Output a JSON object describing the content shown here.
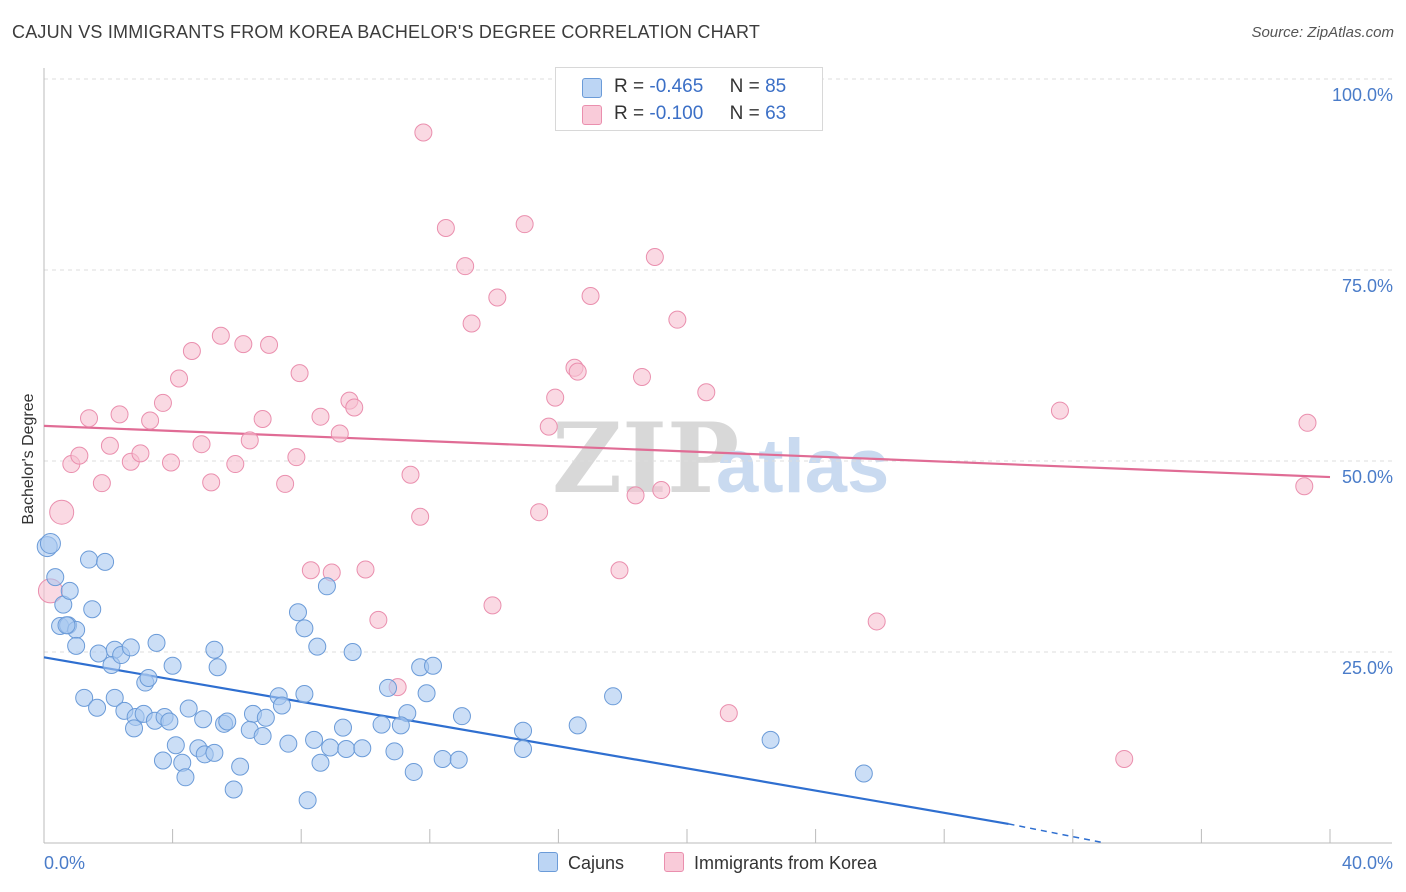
{
  "title": "CAJUN VS IMMIGRANTS FROM KOREA BACHELOR'S DEGREE CORRELATION CHART",
  "source": "Source: ZipAtlas.com",
  "colors": {
    "blue_fill": "#a9c8f0",
    "blue_stroke": "#6b9bd8",
    "blue_line": "#2f6fd0",
    "pink_fill": "#f6bfd0",
    "pink_stroke": "#ea8fae",
    "pink_line": "#e06c95",
    "tick_text": "#4a7cc9",
    "grid": "#dddddd"
  },
  "legend": {
    "rows": [
      {
        "r_label": "R =",
        "r_value": "-0.465",
        "n_label": "N =",
        "n_value": "85"
      },
      {
        "r_label": "R =",
        "r_value": "-0.100",
        "n_label": "N =",
        "n_value": "63"
      }
    ]
  },
  "bottom_legend": [
    "Cajuns",
    "Immigrants from Korea"
  ],
  "chart_data": {
    "type": "scatter",
    "title": "CAJUN VS IMMIGRANTS FROM KOREA BACHELOR'S DEGREE CORRELATION CHART",
    "xlabel": "",
    "ylabel": "Bachelor's Degree",
    "xlim": [
      0,
      40
    ],
    "ylim": [
      0,
      100
    ],
    "x_tick_labels": [
      "0.0%",
      "40.0%"
    ],
    "y_ticks": [
      25,
      50,
      75,
      100
    ],
    "y_tick_labels": [
      "25.0%",
      "50.0%",
      "75.0%",
      "100.0%"
    ],
    "grid": true,
    "legend_position": "top-center",
    "series": [
      {
        "name": "Cajuns",
        "r": -0.465,
        "n": 85,
        "trend": {
          "x": [
            0,
            30.0
          ],
          "y": [
            24.3,
            2.5
          ],
          "dashed_to": [
            33.0,
            0.0
          ]
        },
        "points": [
          [
            0.1,
            38.8
          ],
          [
            0.2,
            39.2
          ],
          [
            0.35,
            34.8
          ],
          [
            0.6,
            31.2
          ],
          [
            0.8,
            33.0
          ],
          [
            0.5,
            28.4
          ],
          [
            0.75,
            28.5
          ],
          [
            1.0,
            27.9
          ],
          [
            1.4,
            37.1
          ],
          [
            1.9,
            36.8
          ],
          [
            1.5,
            30.6
          ],
          [
            1.0,
            25.8
          ],
          [
            1.7,
            24.8
          ],
          [
            2.2,
            25.3
          ],
          [
            2.1,
            23.3
          ],
          [
            2.4,
            24.6
          ],
          [
            2.7,
            25.6
          ],
          [
            3.5,
            26.2
          ],
          [
            4.0,
            23.2
          ],
          [
            3.15,
            21.0
          ],
          [
            3.25,
            21.6
          ],
          [
            1.25,
            19.0
          ],
          [
            2.2,
            19.0
          ],
          [
            1.65,
            17.7
          ],
          [
            2.5,
            17.3
          ],
          [
            2.85,
            16.5
          ],
          [
            2.8,
            15.0
          ],
          [
            3.1,
            16.9
          ],
          [
            3.45,
            16.0
          ],
          [
            3.75,
            16.5
          ],
          [
            3.9,
            15.9
          ],
          [
            4.5,
            17.6
          ],
          [
            4.95,
            16.2
          ],
          [
            5.6,
            15.6
          ],
          [
            5.7,
            15.9
          ],
          [
            6.5,
            16.9
          ],
          [
            6.9,
            16.4
          ],
          [
            5.3,
            25.3
          ],
          [
            5.4,
            23.0
          ],
          [
            7.3,
            19.2
          ],
          [
            7.4,
            18.0
          ],
          [
            8.1,
            19.5
          ],
          [
            7.9,
            30.2
          ],
          [
            8.1,
            28.1
          ],
          [
            8.8,
            33.6
          ],
          [
            8.5,
            25.7
          ],
          [
            9.6,
            25.0
          ],
          [
            10.7,
            20.3
          ],
          [
            11.7,
            23.0
          ],
          [
            12.1,
            23.2
          ],
          [
            11.9,
            19.6
          ],
          [
            11.3,
            17.0
          ],
          [
            13.0,
            16.6
          ],
          [
            4.1,
            12.8
          ],
          [
            4.3,
            10.5
          ],
          [
            4.4,
            8.6
          ],
          [
            3.7,
            10.8
          ],
          [
            4.8,
            12.4
          ],
          [
            5.0,
            11.6
          ],
          [
            5.3,
            11.8
          ],
          [
            5.9,
            7.0
          ],
          [
            6.1,
            10.0
          ],
          [
            6.4,
            14.8
          ],
          [
            6.8,
            14.0
          ],
          [
            7.6,
            13.0
          ],
          [
            8.4,
            13.5
          ],
          [
            8.6,
            10.5
          ],
          [
            8.9,
            12.5
          ],
          [
            9.3,
            15.1
          ],
          [
            9.4,
            12.3
          ],
          [
            9.9,
            12.4
          ],
          [
            10.5,
            15.5
          ],
          [
            10.9,
            12.0
          ],
          [
            11.1,
            15.4
          ],
          [
            11.5,
            9.3
          ],
          [
            12.4,
            11.0
          ],
          [
            12.9,
            10.9
          ],
          [
            8.2,
            5.6
          ],
          [
            14.9,
            14.7
          ],
          [
            14.9,
            12.3
          ],
          [
            16.6,
            15.4
          ],
          [
            17.7,
            19.2
          ],
          [
            22.6,
            13.5
          ],
          [
            25.5,
            9.1
          ],
          [
            0.7,
            28.5
          ]
        ]
      },
      {
        "name": "Immigrants from Korea",
        "r": -0.1,
        "n": 63,
        "trend": {
          "x": [
            0,
            40
          ],
          "y": [
            54.6,
            47.9
          ]
        },
        "points": [
          [
            0.2,
            33.0
          ],
          [
            0.55,
            43.3
          ],
          [
            0.85,
            49.6
          ],
          [
            1.1,
            50.7
          ],
          [
            1.4,
            55.6
          ],
          [
            1.8,
            47.1
          ],
          [
            2.05,
            52.0
          ],
          [
            2.35,
            56.1
          ],
          [
            2.7,
            49.9
          ],
          [
            3.0,
            51.0
          ],
          [
            3.3,
            55.3
          ],
          [
            3.7,
            57.6
          ],
          [
            3.95,
            49.8
          ],
          [
            4.2,
            60.8
          ],
          [
            4.6,
            64.4
          ],
          [
            4.9,
            52.2
          ],
          [
            5.2,
            47.2
          ],
          [
            5.5,
            66.4
          ],
          [
            5.95,
            49.6
          ],
          [
            6.2,
            65.3
          ],
          [
            6.4,
            52.7
          ],
          [
            6.8,
            55.5
          ],
          [
            7.0,
            65.2
          ],
          [
            7.5,
            47.0
          ],
          [
            7.85,
            50.5
          ],
          [
            7.95,
            61.5
          ],
          [
            8.3,
            35.7
          ],
          [
            8.6,
            55.8
          ],
          [
            8.95,
            35.4
          ],
          [
            9.2,
            53.6
          ],
          [
            9.5,
            57.9
          ],
          [
            9.65,
            57.0
          ],
          [
            10.0,
            35.8
          ],
          [
            10.4,
            29.2
          ],
          [
            11.0,
            20.4
          ],
          [
            11.4,
            48.2
          ],
          [
            11.7,
            42.7
          ],
          [
            11.8,
            93.0
          ],
          [
            12.5,
            80.5
          ],
          [
            13.1,
            75.5
          ],
          [
            13.3,
            68.0
          ],
          [
            13.95,
            31.1
          ],
          [
            14.1,
            71.4
          ],
          [
            14.95,
            81.0
          ],
          [
            15.4,
            43.3
          ],
          [
            15.7,
            54.5
          ],
          [
            15.9,
            58.3
          ],
          [
            16.5,
            62.2
          ],
          [
            16.6,
            61.7
          ],
          [
            17.0,
            71.6
          ],
          [
            17.9,
            35.7
          ],
          [
            18.4,
            45.5
          ],
          [
            18.6,
            61.0
          ],
          [
            19.0,
            76.7
          ],
          [
            19.2,
            46.2
          ],
          [
            19.7,
            68.5
          ],
          [
            20.6,
            59.0
          ],
          [
            21.3,
            17.0
          ],
          [
            25.9,
            29.0
          ],
          [
            31.6,
            56.6
          ],
          [
            33.6,
            11.0
          ],
          [
            39.2,
            46.7
          ],
          [
            39.3,
            55.0
          ]
        ]
      }
    ]
  }
}
